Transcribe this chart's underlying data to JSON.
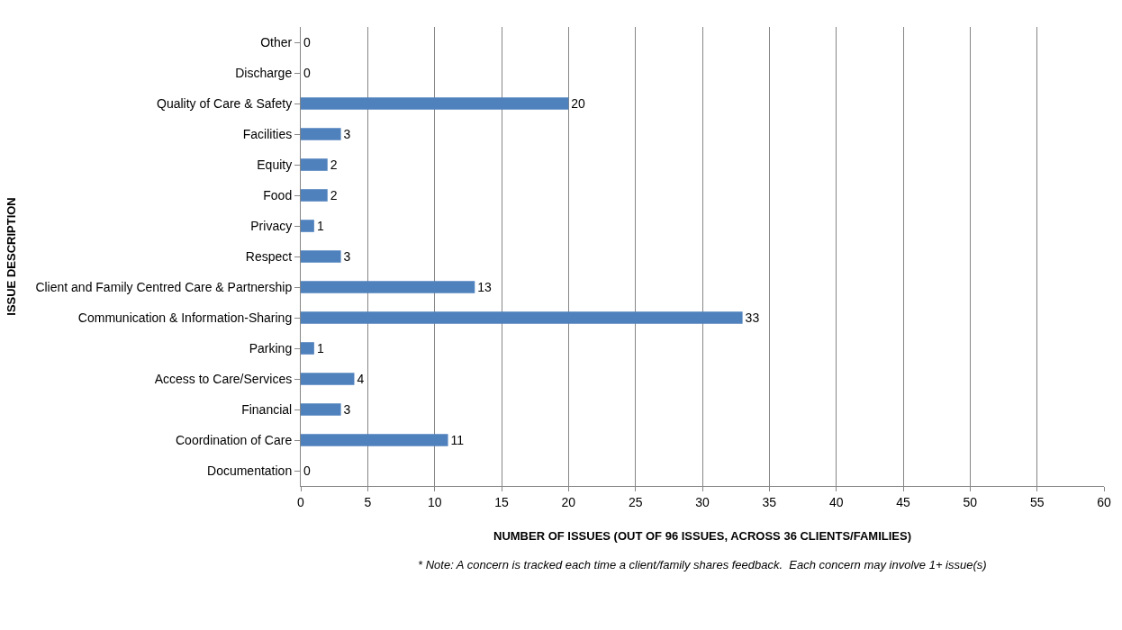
{
  "chart_data": {
    "type": "bar",
    "orientation": "horizontal",
    "categories": [
      "Other",
      "Discharge",
      "Quality of Care & Safety",
      "Facilities",
      "Equity",
      "Food",
      "Privacy",
      "Respect",
      "Client and Family Centred Care & Partnership",
      "Communication & Information-Sharing",
      "Parking",
      "Access to Care/Services",
      "Financial",
      "Coordination of Care",
      "Documentation"
    ],
    "values": [
      0,
      0,
      20,
      3,
      2,
      2,
      1,
      3,
      13,
      33,
      1,
      4,
      3,
      11,
      0
    ],
    "color": "#4f81bd",
    "data_labels": true,
    "xlim": [
      0,
      60
    ],
    "xticks": [
      0,
      5,
      10,
      15,
      20,
      25,
      30,
      35,
      40,
      45,
      50,
      55,
      60
    ],
    "grid": "x",
    "legend": false,
    "xlabel": "NUMBER OF ISSUES (OUT OF 96 ISSUES, ACROSS 36 CLIENTS/FAMILIES)",
    "ylabel": "ISSUE DESCRIPTION",
    "annotations": [
      "* Note: A concern is tracked each time a client/family shares feedback.  Each concern may involve 1+ issue(s)"
    ]
  }
}
